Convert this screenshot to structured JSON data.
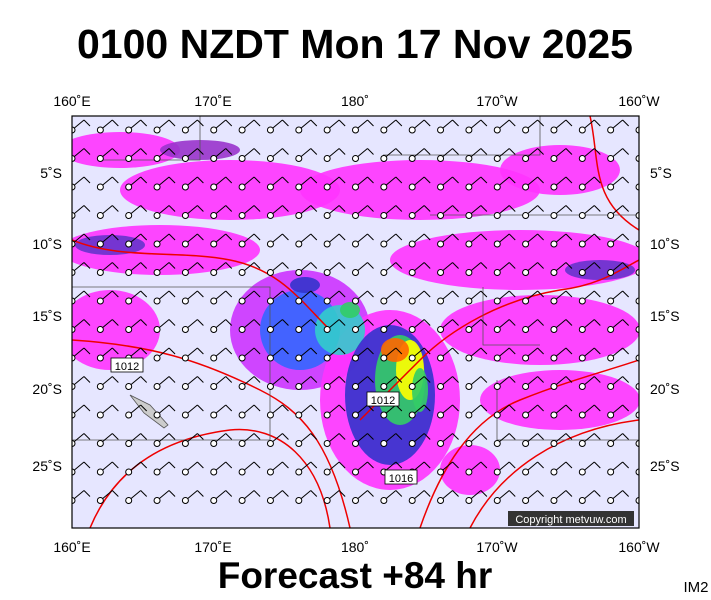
{
  "header": {
    "title": "0100 NZDT Mon 17 Nov 2025"
  },
  "map": {
    "lon_labels": [
      "160˚E",
      "170˚E",
      "180˚",
      "170˚W",
      "160˚W"
    ],
    "lat_labels": [
      "5˚S",
      "10˚S",
      "15˚S",
      "20˚S",
      "25˚S"
    ],
    "isobar_labels": [
      "1012",
      "1012",
      "1016"
    ],
    "copyright": "Copyright metvuw.com"
  },
  "footer": {
    "forecast": "Forecast +84 hr",
    "tag": "IM2"
  }
}
